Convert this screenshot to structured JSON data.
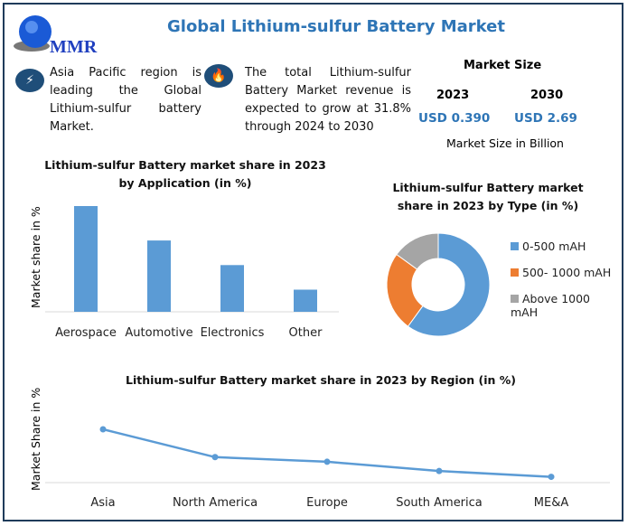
{
  "header": {
    "title": "Global Lithium-sulfur Battery Market",
    "logo_text": "MMR"
  },
  "highlights": [
    {
      "icon": "lightning-icon",
      "text": "Asia Pacific region is leading the Global Lithium-sulfur battery Market."
    },
    {
      "icon": "flame-icon",
      "text": "The total Lithium-sulfur Battery Market revenue is expected to grow at 31.8% through 2024 to 2030"
    }
  ],
  "market_size": {
    "title": "Market Size",
    "year1": "2023",
    "year2": "2030",
    "value1": "USD 0.390",
    "value2": "USD 2.69",
    "note": "Market Size in Billion"
  },
  "colors": {
    "blue": "#5B9BD5",
    "orange": "#ED7D31",
    "gray": "#A5A5A5",
    "title": "#2E75B6"
  },
  "chart_data": [
    {
      "type": "bar",
      "title": "Lithium-sulfur Battery market  share in 2023 by Application (in %)",
      "ylabel": "Market share in %",
      "xlabel": "",
      "categories": [
        "Aerospace",
        "Automotive",
        "Electronics",
        "Other"
      ],
      "values": [
        43,
        29,
        19,
        9
      ],
      "grid": false
    },
    {
      "type": "pie",
      "donut": true,
      "title": "Lithium-sulfur Battery market share in 2023 by Type (in %)",
      "categories": [
        "0-500 mAH",
        "500- 1000 mAH",
        "Above 1000 mAH"
      ],
      "values": [
        60,
        25,
        15
      ],
      "legend": "right"
    },
    {
      "type": "line",
      "title": "Lithium-sulfur Battery market  share in 2023 by Region (in %)",
      "ylabel": "Market Share in %",
      "xlabel": "",
      "categories": [
        "Asia",
        "North America",
        "Europe",
        "South America",
        "ME&A"
      ],
      "values": [
        46,
        22,
        18,
        10,
        5
      ],
      "grid": false
    }
  ]
}
